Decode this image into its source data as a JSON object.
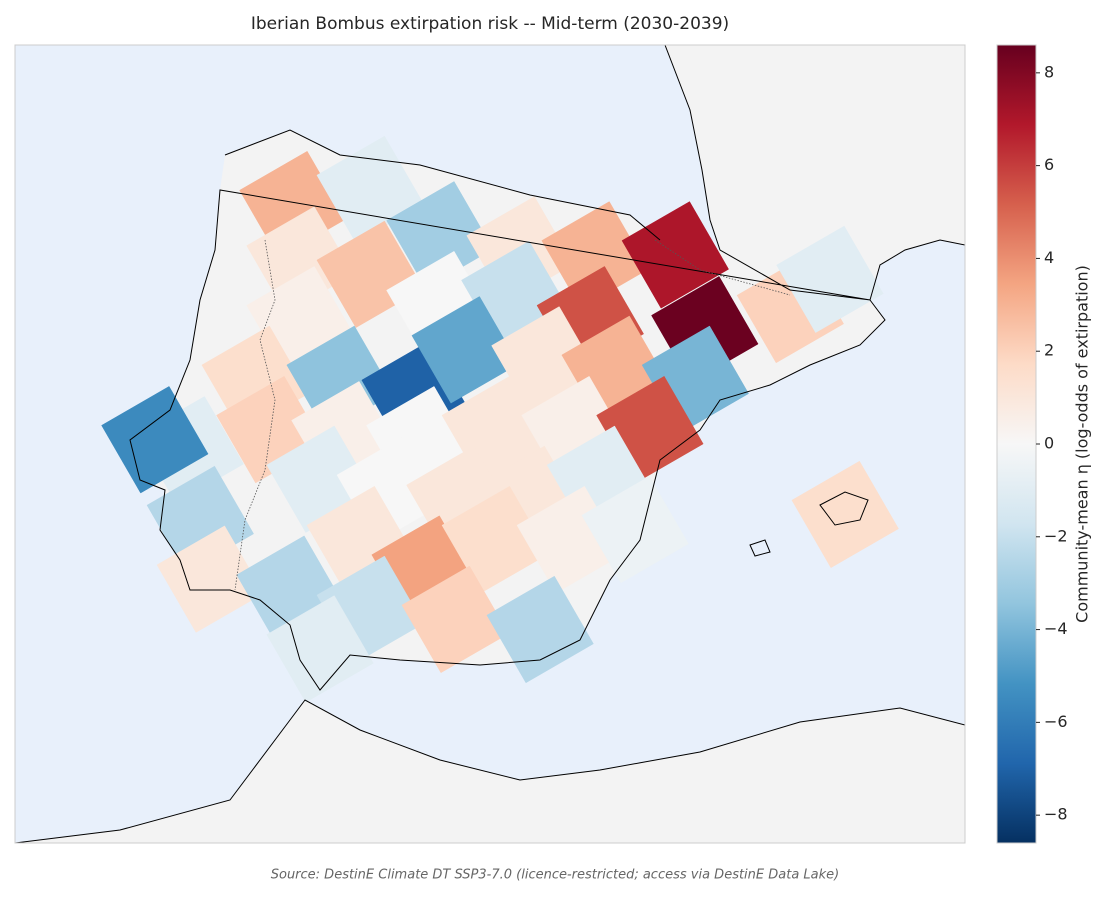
{
  "chart_data": {
    "type": "grid-map",
    "title": "Iberian Bombus extirpation risk -- Mid-term (2030-2039)",
    "colorbar_label": "Community-mean η (log-odds of extirpation)",
    "source": "Source: DestinE Climate DT SSP3-7.0 (licence-restricted; access via DestinE Data Lake)",
    "xlim": [
      -11.3,
      4.8
    ],
    "ylim": [
      33.9,
      45
    ],
    "clim": [
      -8.6,
      8.6
    ],
    "cticks": [
      {
        "value": -8,
        "label": "−8"
      },
      {
        "value": -6,
        "label": "−6"
      },
      {
        "value": -4,
        "label": "−4"
      },
      {
        "value": -2,
        "label": "−2"
      },
      0,
      2,
      4,
      6,
      8
    ],
    "colormap": [
      "#053061",
      "#2166ac",
      "#4393c3",
      "#92c5de",
      "#d1e5f0",
      "#f7f7f7",
      "#fddbc7",
      "#f4a582",
      "#d6604d",
      "#b2182b",
      "#67001f"
    ],
    "x": [
      -6.59,
      -5.28,
      -4.1,
      -6.47,
      -5.28,
      -2.74,
      -1.47,
      -0.11,
      -6.47,
      -4.1,
      -2.83,
      -1.55,
      0.39,
      1.84,
      2.51,
      -7.23,
      -5.79,
      -4.52,
      -3.67,
      -2.32,
      -1.13,
      0.23,
      -8.33,
      -8.93,
      -6.98,
      -5.71,
      -4.44,
      -3.16,
      -1.81,
      -0.54,
      -8.16,
      -6.13,
      -4.94,
      -3.76,
      -2.57,
      -1.38,
      -7.99,
      -6.64,
      -5.45,
      -4.35,
      -3.16,
      -1.89,
      -0.79,
      -5.28,
      -3.84,
      -2.4,
      -6.13,
      2.77
    ],
    "y": [
      42.78,
      42.99,
      42.36,
      42.01,
      41.81,
      42.15,
      42.08,
      42.08,
      41.18,
      41.39,
      41.53,
      41.18,
      41.04,
      41.32,
      41.74,
      40.35,
      40.35,
      40.14,
      40.76,
      40.62,
      40.49,
      40.35,
      39.37,
      39.51,
      39.65,
      39.58,
      39.51,
      39.65,
      39.65,
      39.65,
      38.4,
      38.96,
      38.82,
      38.68,
      38.68,
      38.96,
      37.57,
      37.43,
      38.12,
      37.71,
      38.12,
      38.12,
      38.26,
      37.15,
      37.01,
      36.87,
      36.6,
      38.47
    ],
    "values": [
      3,
      -1,
      -3,
      1,
      2.5,
      1,
      3,
      7,
      0.5,
      0,
      -2,
      5.5,
      8.5,
      2,
      -1,
      1.5,
      -3.5,
      -7,
      -4.5,
      1,
      3,
      -4,
      -1,
      -5.5,
      2,
      0.5,
      0,
      1,
      0.5,
      5.5,
      -2.5,
      -1,
      0,
      1,
      1,
      -1,
      1,
      -2.5,
      1,
      3.5,
      1.5,
      0.5,
      -0.5,
      -2,
      2,
      -2.5,
      -1,
      1.5
    ]
  }
}
